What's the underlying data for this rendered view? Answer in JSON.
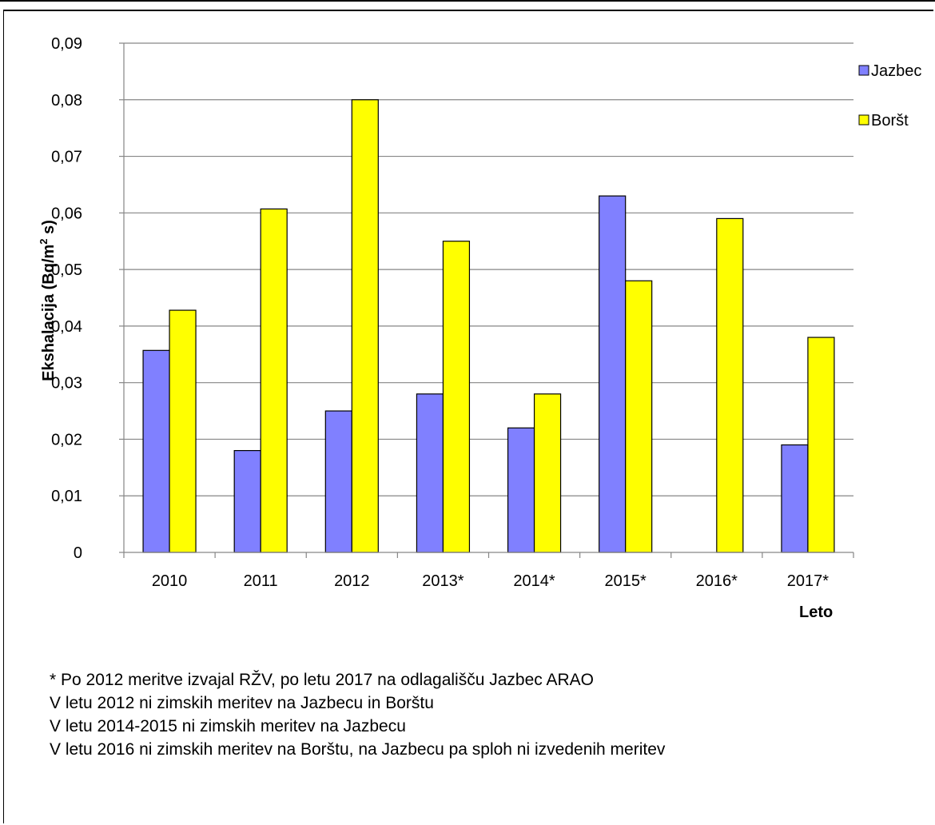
{
  "chart_data": {
    "type": "bar",
    "categories": [
      "2010",
      "2011",
      "2012",
      "2013*",
      "2014*",
      "2015*",
      "2016*",
      "2017*"
    ],
    "series": [
      {
        "name": "Jazbec",
        "values": [
          0.0357,
          0.018,
          0.025,
          0.028,
          0.022,
          0.063,
          null,
          0.019
        ]
      },
      {
        "name": "Boršt",
        "values": [
          0.0428,
          0.0607,
          0.08,
          0.055,
          0.028,
          0.048,
          0.059,
          0.038
        ]
      }
    ],
    "colors": {
      "Jazbec": "#8080ff",
      "Boršt": "#ffff00"
    },
    "title": "",
    "ylabel_main": "Ekshalacija (Bq/m",
    "ylabel_sup": "2",
    "ylabel_tail": " s)",
    "xlabel": "Leto",
    "ylim": [
      0,
      0.09
    ],
    "yticks": [
      "0",
      "0,01",
      "0,02",
      "0,03",
      "0,04",
      "0,05",
      "0,06",
      "0,07",
      "0,08",
      "0,09"
    ],
    "grid": true,
    "legend_position": "top-right"
  },
  "notes": [
    "* Po 2012 meritve izvajal RŽV, po letu 2017 na odlagališču Jazbec ARAO",
    "V letu 2012 ni zimskih meritev na Jazbecu in Borštu",
    "V letu 2014-2015 ni zimskih meritev na Jazbecu",
    "V letu 2016 ni zimskih meritev na Borštu, na Jazbecu pa sploh ni izvedenih meritev"
  ]
}
